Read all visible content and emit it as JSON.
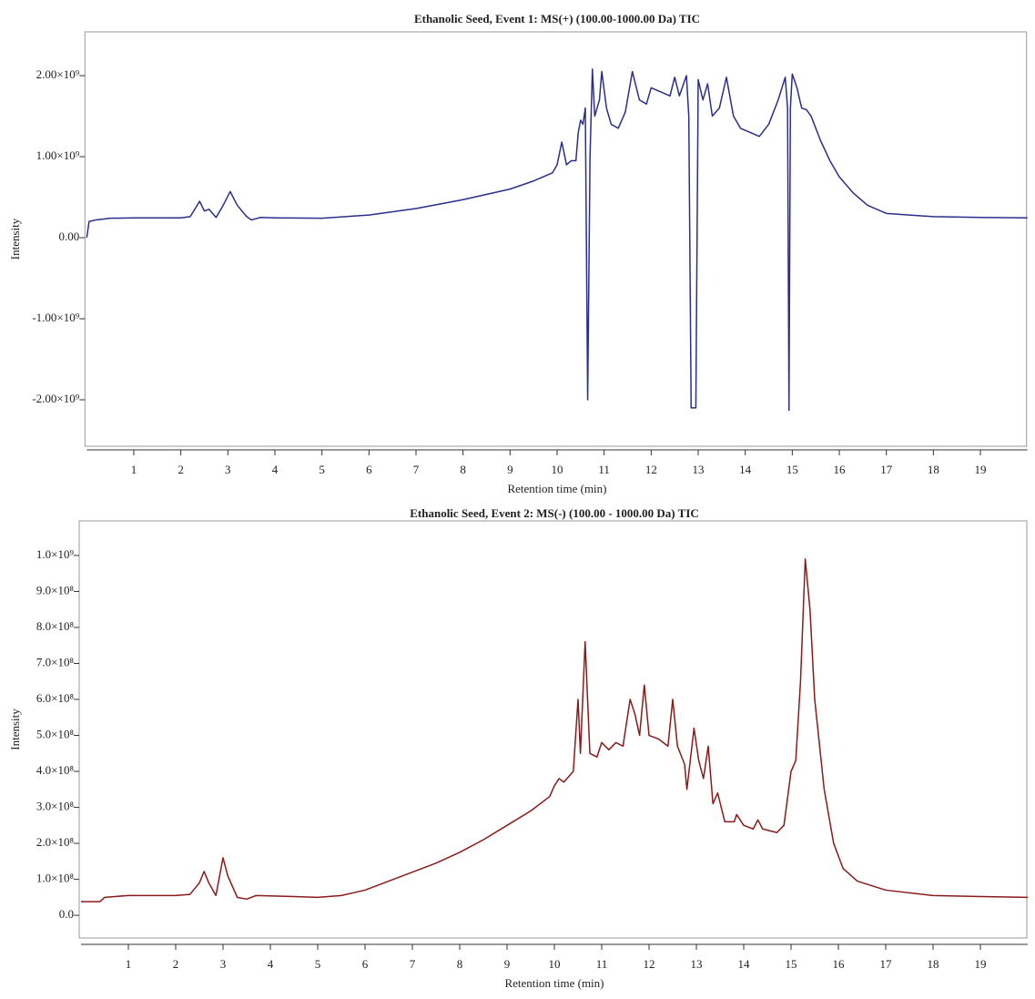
{
  "chart_data": [
    {
      "type": "line",
      "title": "Ethanolic Seed, Event 1: MS(+) (100.00-1000.00 Da) TIC",
      "xlabel": "Retention time (min)",
      "ylabel": "Intensity",
      "color": "#2b2e8c",
      "xlim": [
        0,
        20
      ],
      "ylim": [
        -2573000000.0,
        2540000000.0
      ],
      "xticks": [
        1,
        2,
        3,
        4,
        5,
        6,
        7,
        8,
        9,
        10,
        11,
        12,
        13,
        14,
        15,
        16,
        17,
        18,
        19
      ],
      "yticks": [
        {
          "value": 2000000000.0,
          "label": "2.00×10⁹"
        },
        {
          "value": 1000000000.0,
          "label": "1.00×10⁹"
        },
        {
          "value": 0,
          "label": "0.00"
        },
        {
          "value": -1000000000.0,
          "label": "-1.00×10⁹"
        },
        {
          "value": -2000000000.0,
          "label": "-2.00×10⁹"
        }
      ],
      "x": [
        0,
        0.05,
        0.2,
        0.5,
        1,
        2,
        2.2,
        2.4,
        2.5,
        2.6,
        2.75,
        2.9,
        3.05,
        3.2,
        3.4,
        3.5,
        3.7,
        4,
        5,
        6,
        7,
        8,
        9,
        9.5,
        9.9,
        10,
        10.1,
        10.2,
        10.3,
        10.4,
        10.45,
        10.5,
        10.55,
        10.6,
        10.65,
        10.7,
        10.75,
        10.8,
        10.9,
        10.95,
        11.05,
        11.15,
        11.3,
        11.45,
        11.6,
        11.75,
        11.9,
        12,
        12.2,
        12.4,
        12.5,
        12.6,
        12.75,
        12.8,
        12.85,
        12.95,
        13,
        13.1,
        13.2,
        13.3,
        13.45,
        13.6,
        13.75,
        13.9,
        14.1,
        14.3,
        14.5,
        14.7,
        14.85,
        14.9,
        14.93,
        14.96,
        15,
        15.1,
        15.2,
        15.3,
        15.4,
        15.6,
        15.8,
        16,
        16.3,
        16.6,
        17,
        18,
        19,
        20
      ],
      "values": [
        0,
        200000000.0,
        220000000.0,
        240000000.0,
        245000000.0,
        245000000.0,
        260000000.0,
        450000000.0,
        330000000.0,
        350000000.0,
        250000000.0,
        400000000.0,
        570000000.0,
        400000000.0,
        260000000.0,
        220000000.0,
        250000000.0,
        245000000.0,
        240000000.0,
        280000000.0,
        360000000.0,
        470000000.0,
        600000000.0,
        700000000.0,
        800000000.0,
        900000000.0,
        1180000000.0,
        900000000.0,
        950000000.0,
        950000000.0,
        1300000000.0,
        1450000000.0,
        1400000000.0,
        1600000000.0,
        -2000000000.0,
        1000000000.0,
        2080000000.0,
        1500000000.0,
        1700000000.0,
        2050000000.0,
        1600000000.0,
        1400000000.0,
        1350000000.0,
        1550000000.0,
        2050000000.0,
        1700000000.0,
        1650000000.0,
        1850000000.0,
        1800000000.0,
        1750000000.0,
        1980000000.0,
        1750000000.0,
        2000000000.0,
        1500000000.0,
        -2100000000.0,
        -2100000000.0,
        1950000000.0,
        1700000000.0,
        1900000000.0,
        1500000000.0,
        1600000000.0,
        1980000000.0,
        1500000000.0,
        1350000000.0,
        1300000000.0,
        1250000000.0,
        1400000000.0,
        1700000000.0,
        1980000000.0,
        1600000000.0,
        -2130000000.0,
        1600000000.0,
        2020000000.0,
        1850000000.0,
        1600000000.0,
        1580000000.0,
        1500000000.0,
        1200000000.0,
        950000000.0,
        750000000.0,
        550000000.0,
        400000000.0,
        300000000.0,
        260000000.0,
        250000000.0,
        245000000.0
      ]
    },
    {
      "type": "line",
      "title": "Ethanolic Seed, Event 2: MS(-) (100.00 - 1000.00 Da) TIC",
      "xlabel": "Retention time (min)",
      "ylabel": "Intensity",
      "color": "#8b1a1a",
      "xlim": [
        0,
        20
      ],
      "ylim": [
        -63000000.0,
        1096000000.0
      ],
      "xticks": [
        1,
        2,
        3,
        4,
        5,
        6,
        7,
        8,
        9,
        10,
        11,
        12,
        13,
        14,
        15,
        16,
        17,
        18,
        19
      ],
      "yticks": [
        {
          "value": 0,
          "label": "0.0"
        },
        {
          "value": 100000000.0,
          "label": "1.0×10⁸"
        },
        {
          "value": 200000000.0,
          "label": "2.0×10⁸"
        },
        {
          "value": 300000000.0,
          "label": "3.0×10⁸"
        },
        {
          "value": 400000000.0,
          "label": "4.0×10⁸"
        },
        {
          "value": 500000000.0,
          "label": "5.0×10⁸"
        },
        {
          "value": 600000000.0,
          "label": "6.0×10⁸"
        },
        {
          "value": 700000000.0,
          "label": "7.0×10⁸"
        },
        {
          "value": 800000000.0,
          "label": "8.0×10⁸"
        },
        {
          "value": 900000000.0,
          "label": "9.0×10⁸"
        },
        {
          "value": 1000000000.0,
          "label": "1.0×10⁹"
        }
      ],
      "x": [
        0,
        0.4,
        0.5,
        1,
        2,
        2.3,
        2.5,
        2.6,
        2.7,
        2.85,
        3,
        3.1,
        3.3,
        3.5,
        3.7,
        4.5,
        5,
        5.5,
        6,
        6.5,
        7,
        7.5,
        8,
        8.5,
        9,
        9.5,
        9.9,
        10,
        10.1,
        10.2,
        10.4,
        10.5,
        10.55,
        10.65,
        10.75,
        10.9,
        11,
        11.15,
        11.3,
        11.45,
        11.6,
        11.7,
        11.8,
        11.9,
        12,
        12.2,
        12.4,
        12.5,
        12.6,
        12.75,
        12.8,
        12.95,
        13.05,
        13.15,
        13.25,
        13.35,
        13.45,
        13.6,
        13.8,
        13.85,
        14,
        14.2,
        14.3,
        14.4,
        14.7,
        14.85,
        15,
        15.1,
        15.2,
        15.3,
        15.4,
        15.5,
        15.7,
        15.9,
        16.1,
        16.4,
        17,
        18,
        19,
        20
      ],
      "values": [
        38000000.0,
        38000000.0,
        50000000.0,
        55000000.0,
        55000000.0,
        58000000.0,
        90000000.0,
        122000000.0,
        90000000.0,
        55000000.0,
        160000000.0,
        110000000.0,
        50000000.0,
        45000000.0,
        55000000.0,
        52000000.0,
        50000000.0,
        55000000.0,
        70000000.0,
        95000000.0,
        120000000.0,
        145000000.0,
        175000000.0,
        210000000.0,
        250000000.0,
        290000000.0,
        330000000.0,
        360000000.0,
        380000000.0,
        370000000.0,
        400000000.0,
        600000000.0,
        450000000.0,
        760000000.0,
        450000000.0,
        440000000.0,
        480000000.0,
        460000000.0,
        480000000.0,
        470000000.0,
        600000000.0,
        560000000.0,
        500000000.0,
        640000000.0,
        500000000.0,
        490000000.0,
        470000000.0,
        600000000.0,
        470000000.0,
        420000000.0,
        350000000.0,
        520000000.0,
        430000000.0,
        380000000.0,
        470000000.0,
        310000000.0,
        340000000.0,
        260000000.0,
        260000000.0,
        280000000.0,
        250000000.0,
        240000000.0,
        265000000.0,
        240000000.0,
        230000000.0,
        250000000.0,
        400000000.0,
        430000000.0,
        650000000.0,
        990000000.0,
        850000000.0,
        600000000.0,
        350000000.0,
        200000000.0,
        130000000.0,
        95000000.0,
        70000000.0,
        55000000.0,
        52000000.0,
        50000000.0
      ]
    }
  ]
}
